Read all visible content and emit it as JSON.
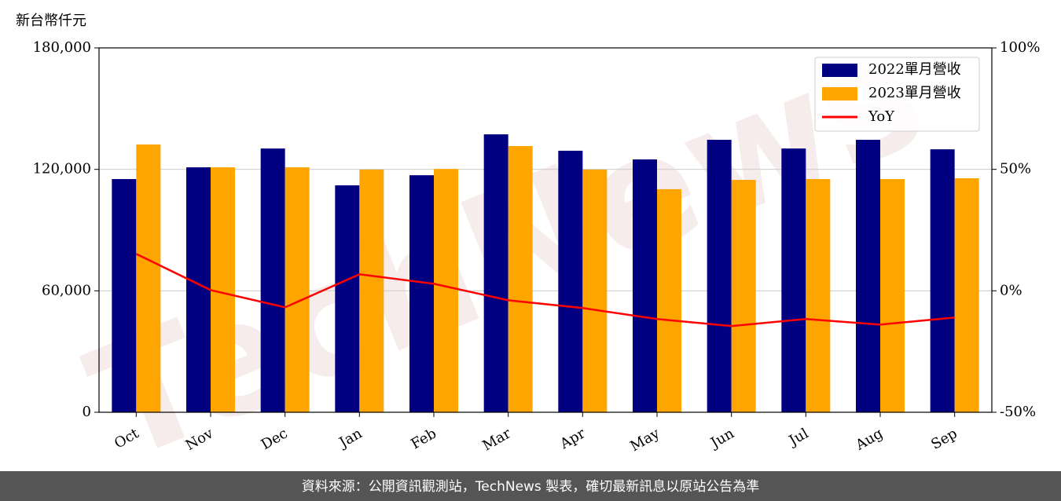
{
  "chart_data": {
    "type": "bar",
    "y_axis_label": "新台幣仟元",
    "watermark": "TechNews",
    "categories": [
      "Oct",
      "Nov",
      "Dec",
      "Jan",
      "Feb",
      "Mar",
      "Apr",
      "May",
      "Jun",
      "Jul",
      "Aug",
      "Sep"
    ],
    "series": [
      {
        "name": "2022單月營收",
        "color": "#000080",
        "values": [
          115200,
          121000,
          130300,
          112100,
          117100,
          137300,
          129200,
          124900,
          134600,
          130300,
          134600,
          129900
        ]
      },
      {
        "name": "2023單月營收",
        "color": "#ffa500",
        "values": [
          132300,
          121000,
          121000,
          119900,
          120200,
          131500,
          119900,
          110200,
          114800,
          115200,
          115200,
          115600
        ]
      },
      {
        "name": "YoY",
        "color": "#ff0000",
        "type": "line",
        "axis": "y2",
        "values": [
          15.2,
          0.3,
          -6.8,
          6.8,
          2.9,
          -3.9,
          -7.1,
          -11.6,
          -14.5,
          -11.6,
          -13.9,
          -11.0
        ]
      }
    ],
    "ylim": [
      0,
      180000
    ],
    "yticks": [
      0,
      {
        "value": 60000,
        "label": "60,000"
      },
      {
        "value": 120000,
        "label": "120,000"
      },
      {
        "value": 180000,
        "label": "180,000"
      }
    ],
    "y2lim": [
      -50,
      100
    ],
    "y2ticks": [
      {
        "value": -50,
        "label": "-50%"
      },
      {
        "value": 0,
        "label": "0%"
      },
      {
        "value": 50,
        "label": "50%"
      },
      {
        "value": 100,
        "label": "100%"
      }
    ],
    "grid": true,
    "legend": "upper right",
    "footer": "資料來源：公開資訊觀測站，TechNews 製表，確切最新訊息以原站公告為準"
  }
}
